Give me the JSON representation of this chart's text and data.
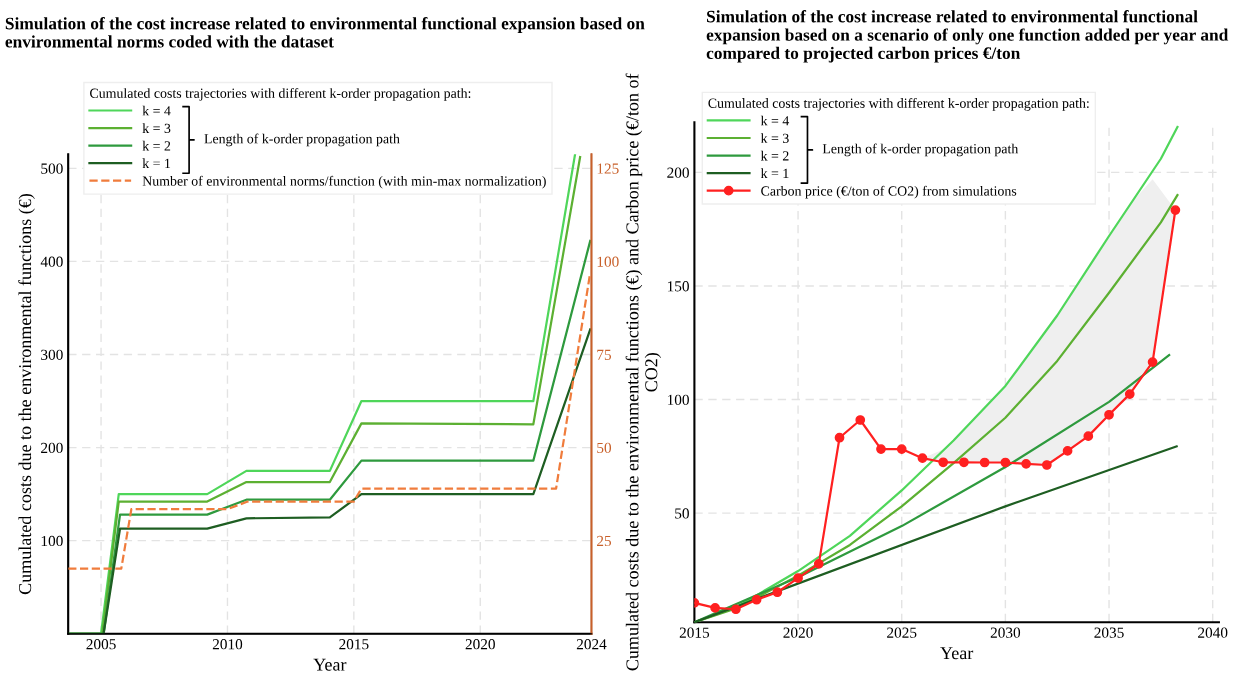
{
  "chart_data": [
    {
      "type": "line",
      "title": "Simulation of the cost increase related to environmental functional expansion based on environmental norms coded with the dataset",
      "xlabel": "Year",
      "ylabel": "Cumulated costs due to the environmental functions (€)",
      "legend_title": "Cumulated costs trajectories with different k-order propagation path:",
      "annotations": [
        "Length of k-order propagation path"
      ],
      "xlim": [
        2003.7,
        2024.4
      ],
      "xticks": [
        2005,
        2010,
        2015,
        2020,
        {
          "value": 2024.4,
          "label": "2024"
        }
      ],
      "ylim": [
        0,
        515
      ],
      "yticks": [
        100,
        200,
        300,
        400,
        500
      ],
      "y2lim": [
        0,
        128.75
      ],
      "y2ticks": [
        25,
        50,
        75,
        100,
        125
      ],
      "grid": true,
      "legend": "top",
      "line_style": "solid",
      "series": [
        {
          "name": "k = 4",
          "color": "#4fd65a",
          "x": [
            2003.7,
            2005.0,
            2005.7,
            2009.2,
            2010.75,
            2014.05,
            2015.3,
            2022.1,
            2023.75
          ],
          "values": [
            0,
            0,
            150,
            150,
            175,
            175,
            250,
            250,
            515
          ]
        },
        {
          "name": "k = 3",
          "color": "#5cb032",
          "x": [
            2003.7,
            2005.05,
            2005.7,
            2009.2,
            2010.75,
            2014.05,
            2015.3,
            2022.1,
            2023.95
          ],
          "values": [
            0,
            0,
            142,
            142,
            163,
            163,
            226,
            225,
            512
          ]
        },
        {
          "name": "k = 2",
          "color": "#2e9a3e",
          "x": [
            2003.7,
            2005.1,
            2005.75,
            2009.2,
            2010.75,
            2014.05,
            2015.3,
            2022.1,
            2024.35
          ],
          "values": [
            0,
            0,
            128,
            128,
            144,
            144,
            186,
            186,
            422
          ]
        },
        {
          "name": "k = 1",
          "color": "#1e5e22",
          "x": [
            2003.7,
            2005.1,
            2005.75,
            2009.2,
            2010.75,
            2014.05,
            2015.3,
            2022.1,
            2024.35
          ],
          "values": [
            0,
            0,
            113,
            113,
            124,
            125,
            150,
            150,
            327
          ]
        },
        {
          "name": "Number of environmental norms/function (with min-max normalization)",
          "color": "#f07c3c",
          "axis": "y2",
          "line_style": "dashed",
          "x": [
            2003.7,
            2005.8,
            2006.2,
            2010.0,
            2010.8,
            2015.0,
            2015.3,
            2023.0,
            2024.35
          ],
          "values": [
            17.5,
            17.5,
            33.5,
            33.5,
            35.5,
            35.5,
            39,
            39,
            97
          ]
        }
      ]
    },
    {
      "type": "line",
      "title": "Simulation of the cost increase related to environmental functional expansion based on a scenario of only one function added per year and compared to projected carbon prices €/ton",
      "xlabel": "Year",
      "ylabel": "Cumulated costs due to the environmental functions (€) and Carbon price (€/ton of CO2)",
      "legend_title": "Cumulated costs trajectories with different k-order propagation path:",
      "annotations": [
        "Length of k-order propagation path"
      ],
      "xlim": [
        2015,
        2040.3
      ],
      "xticks": [
        2015,
        2020,
        2025,
        2030,
        2035,
        2040
      ],
      "ylim": [
        2,
        222
      ],
      "yticks": [
        50,
        100,
        150,
        200
      ],
      "grid": true,
      "legend": "top left",
      "line_style": "solid",
      "series": [
        {
          "name": "k = 4",
          "color": "#4fd65a",
          "x": [
            2015,
            2017,
            2020,
            2022.5,
            2025,
            2027.5,
            2030,
            2032.5,
            2035,
            2037.5,
            2038.3
          ],
          "values": [
            2,
            8.5,
            24.5,
            40,
            60,
            82,
            106,
            137,
            172,
            206,
            220
          ]
        },
        {
          "name": "k = 3",
          "color": "#5cb032",
          "x": [
            2015,
            2017,
            2020,
            2022.5,
            2025,
            2027.5,
            2030,
            2032.5,
            2035,
            2037.5,
            2038.3
          ],
          "values": [
            2,
            8,
            22.5,
            36,
            53,
            72,
            92,
            117,
            147,
            178,
            190
          ]
        },
        {
          "name": "k = 2",
          "color": "#2e9a3e",
          "x": [
            2015,
            2020,
            2025,
            2030,
            2035,
            2037.9
          ],
          "values": [
            2,
            21.8,
            44.3,
            70.3,
            99,
            119.6
          ]
        },
        {
          "name": "k = 1",
          "color": "#1e5e22",
          "x": [
            2015,
            2030,
            2038.26
          ],
          "values": [
            2,
            53,
            79.4
          ]
        },
        {
          "name": "Carbon price (€/ton of CO2) from simulations",
          "color": "#ff2020",
          "marker": "circle",
          "x": [
            2015,
            2016,
            2017,
            2018,
            2019,
            2020,
            2021,
            2022,
            2023,
            2024,
            2025,
            2026,
            2027,
            2028,
            2029,
            2030,
            2031,
            2032,
            2033,
            2034,
            2035,
            2036,
            2037.1,
            2038.2
          ],
          "values": [
            10.5,
            8.3,
            7.7,
            11.9,
            15.2,
            21.4,
            27.7,
            83.2,
            91,
            78.2,
            78.2,
            74.2,
            72.4,
            72.4,
            72.3,
            72.3,
            71.7,
            71.2,
            77.4,
            83.9,
            93.3,
            102.4,
            116.5,
            183.4
          ],
          "lower": [
            null,
            null,
            null,
            null,
            null,
            null,
            null,
            null,
            null,
            null,
            null,
            74.2,
            72.4,
            72.4,
            72.3,
            72.3,
            71.7,
            71.2,
            77.4,
            83.9,
            93.3,
            102.4,
            116.5,
            183.4
          ],
          "upper": [
            null,
            null,
            null,
            null,
            null,
            null,
            null,
            null,
            null,
            null,
            null,
            74.2,
            78,
            86,
            96,
            106,
            118,
            131,
            144,
            158,
            172,
            186,
            197,
            183.4
          ]
        }
      ]
    }
  ]
}
